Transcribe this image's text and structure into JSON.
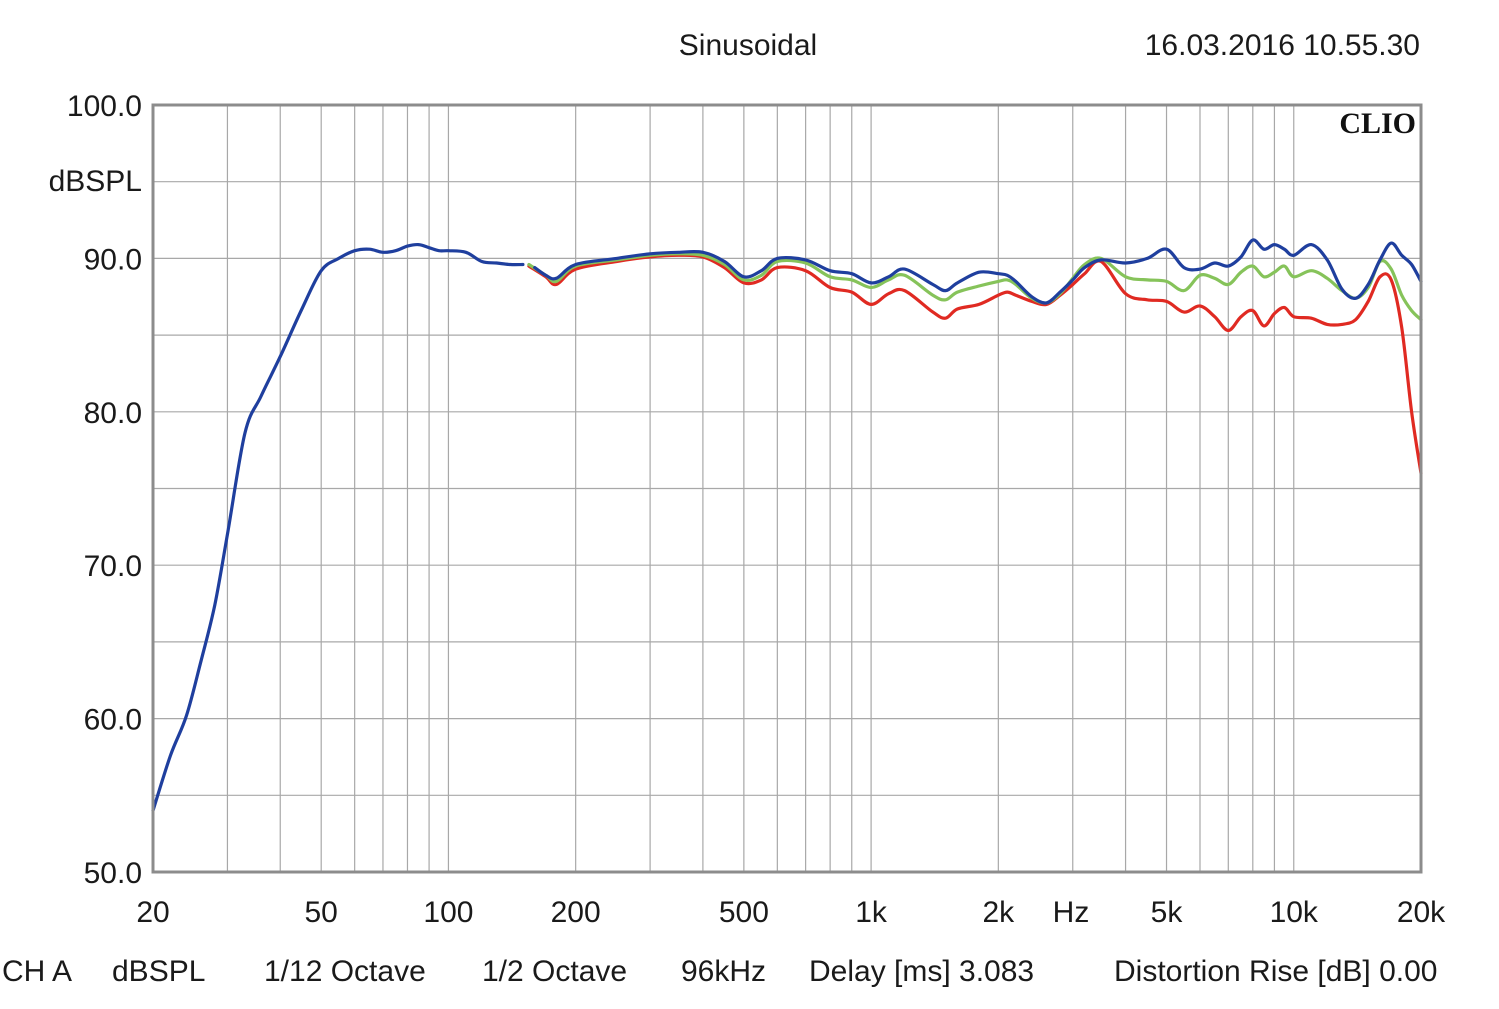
{
  "header": {
    "title": "Sinusoidal",
    "timestamp": "16.03.2016 10.55.30",
    "brand": "CLIO"
  },
  "footer": {
    "channel": "CH A",
    "units": "dBSPL",
    "smoothing": "1/12 Octave",
    "octave": "1/2 Octave",
    "sample_rate": "96kHz",
    "delay": "Delay [ms] 3.083",
    "distortion": "Distortion Rise [dB] 0.00"
  },
  "colors": {
    "background": "#ffffff",
    "grid": "#a8a8a8",
    "frame": "#8c8c8c",
    "text": "#1a1a1a",
    "series_blue": "#1f3f9e",
    "series_green": "#86c35a",
    "series_red": "#e02a22"
  },
  "chart_data": {
    "type": "line",
    "title": "Sinusoidal",
    "xlabel": "Hz",
    "ylabel": "dBSPL",
    "x_scale": "log",
    "xlim": [
      20,
      20000
    ],
    "ylim": [
      50,
      100
    ],
    "grid": true,
    "x_ticks": [
      20,
      50,
      100,
      200,
      500,
      1000,
      2000,
      5000,
      10000,
      20000
    ],
    "x_tick_labels": [
      "20",
      "50",
      "100",
      "200",
      "500",
      "1k",
      "2k",
      "5k",
      "10k",
      "20k"
    ],
    "y_ticks": [
      50,
      60,
      70,
      80,
      90,
      100
    ],
    "y_tick_labels": [
      "50.0",
      "60.0",
      "70.0",
      "80.0",
      "90.0",
      "100.0"
    ],
    "series": [
      {
        "color": "#1f3f9e",
        "x": [
          20,
          22,
          24,
          26,
          28,
          30,
          33,
          36,
          40,
          45,
          50,
          55,
          60,
          65,
          70,
          75,
          80,
          85,
          90,
          95,
          100,
          110,
          120,
          130,
          140,
          150
        ],
        "y": [
          54.0,
          57.6,
          60.2,
          63.8,
          67.4,
          72.0,
          78.6,
          81.0,
          83.6,
          86.7,
          89.2,
          90.0,
          90.5,
          90.6,
          90.4,
          90.5,
          90.8,
          90.9,
          90.7,
          90.5,
          90.5,
          90.4,
          89.8,
          89.7,
          89.6,
          89.6
        ]
      },
      {
        "color": "#e02a22",
        "x": [
          155,
          170,
          180,
          200,
          250,
          300,
          350,
          400,
          450,
          500,
          550,
          600,
          700,
          800,
          900,
          1000,
          1100,
          1200,
          1400,
          1500,
          1600,
          1800,
          2000,
          2100,
          2200,
          2400,
          2600,
          2800,
          3000,
          3200,
          3500,
          4000,
          4500,
          5000,
          5500,
          6000,
          6500,
          7000,
          7500,
          8000,
          8500,
          9000,
          9500,
          10000,
          11000,
          12000,
          13000,
          14000,
          15000,
          16000,
          17000,
          18000,
          19000,
          20000
        ],
        "y": [
          89.5,
          88.8,
          88.3,
          89.3,
          89.8,
          90.1,
          90.2,
          90.1,
          89.4,
          88.4,
          88.6,
          89.4,
          89.2,
          88.1,
          87.8,
          87.0,
          87.7,
          87.9,
          86.5,
          86.1,
          86.7,
          87.0,
          87.6,
          87.8,
          87.6,
          87.2,
          87.0,
          87.6,
          88.3,
          89.0,
          89.8,
          87.7,
          87.3,
          87.2,
          86.5,
          86.9,
          86.2,
          85.3,
          86.2,
          86.6,
          85.6,
          86.4,
          86.8,
          86.2,
          86.1,
          85.7,
          85.7,
          86.0,
          87.2,
          88.8,
          88.6,
          85.5,
          80.0,
          76.0
        ]
      },
      {
        "color": "#86c35a",
        "x": [
          155,
          170,
          180,
          200,
          250,
          300,
          350,
          400,
          450,
          500,
          550,
          600,
          700,
          800,
          900,
          1000,
          1100,
          1200,
          1400,
          1500,
          1600,
          1800,
          2000,
          2100,
          2200,
          2400,
          2600,
          2800,
          3000,
          3200,
          3500,
          4000,
          4500,
          5000,
          5500,
          6000,
          6500,
          7000,
          7500,
          8000,
          8500,
          9000,
          9500,
          10000,
          11000,
          12000,
          13000,
          14000,
          15000,
          16000,
          17000,
          18000,
          19000,
          20000
        ],
        "y": [
          89.6,
          88.9,
          88.5,
          89.5,
          89.9,
          90.2,
          90.3,
          90.2,
          89.6,
          88.6,
          88.9,
          89.8,
          89.7,
          88.8,
          88.6,
          88.1,
          88.6,
          88.9,
          87.6,
          87.3,
          87.8,
          88.2,
          88.5,
          88.6,
          88.3,
          87.4,
          87.1,
          87.7,
          88.7,
          89.6,
          90.0,
          88.8,
          88.6,
          88.5,
          87.9,
          88.9,
          88.7,
          88.3,
          89.1,
          89.5,
          88.8,
          89.1,
          89.5,
          88.8,
          89.2,
          88.7,
          87.9,
          87.4,
          88.1,
          89.8,
          89.3,
          87.6,
          86.6,
          86.0
        ]
      },
      {
        "color": "#1f3f9e",
        "x": [
          160,
          170,
          180,
          200,
          250,
          300,
          350,
          400,
          450,
          500,
          550,
          600,
          700,
          800,
          900,
          1000,
          1100,
          1200,
          1400,
          1500,
          1600,
          1800,
          2000,
          2100,
          2200,
          2400,
          2600,
          2800,
          3000,
          3200,
          3500,
          4000,
          4500,
          5000,
          5500,
          6000,
          6500,
          7000,
          7500,
          8000,
          8500,
          9000,
          9500,
          10000,
          11000,
          12000,
          13000,
          14000,
          15000,
          16000,
          17000,
          18000,
          19000,
          20000
        ],
        "y": [
          89.4,
          88.9,
          88.7,
          89.6,
          90.0,
          90.3,
          90.4,
          90.4,
          89.8,
          88.8,
          89.2,
          90.0,
          89.9,
          89.2,
          89.0,
          88.4,
          88.8,
          89.3,
          88.3,
          87.9,
          88.4,
          89.1,
          89.0,
          88.9,
          88.5,
          87.5,
          87.1,
          87.8,
          88.6,
          89.4,
          89.9,
          89.7,
          90.0,
          90.6,
          89.4,
          89.3,
          89.7,
          89.5,
          90.1,
          91.2,
          90.6,
          90.9,
          90.6,
          90.2,
          90.9,
          89.9,
          88.0,
          87.4,
          88.3,
          89.9,
          91.0,
          90.2,
          89.6,
          88.5
        ]
      }
    ]
  }
}
